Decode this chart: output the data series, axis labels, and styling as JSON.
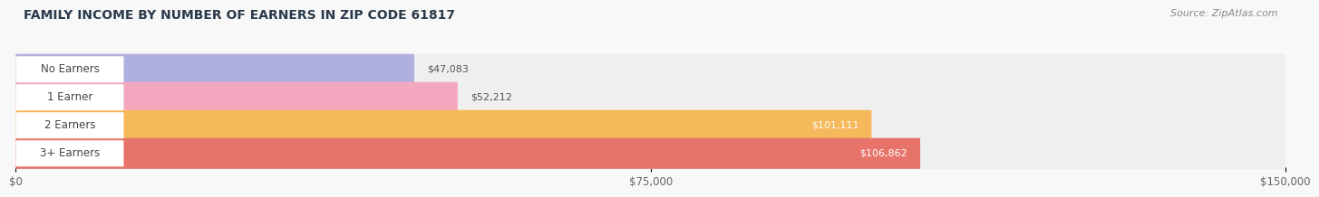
{
  "title": "FAMILY INCOME BY NUMBER OF EARNERS IN ZIP CODE 61817",
  "source": "Source: ZipAtlas.com",
  "categories": [
    "No Earners",
    "1 Earner",
    "2 Earners",
    "3+ Earners"
  ],
  "values": [
    47083,
    52212,
    101111,
    106862
  ],
  "bar_colors": [
    "#b0b0e0",
    "#f4a8c0",
    "#f5b85a",
    "#e8736a"
  ],
  "bar_bg_color": "#efefef",
  "value_labels": [
    "$47,083",
    "$52,212",
    "$101,111",
    "$106,862"
  ],
  "xlim": [
    0,
    150000
  ],
  "xticks": [
    0,
    75000,
    150000
  ],
  "xtick_labels": [
    "$0",
    "$75,000",
    "$150,000"
  ],
  "fig_bg_color": "#f8f8f8",
  "bar_area_bg": "#f0f0f0",
  "title_fontsize": 10,
  "source_fontsize": 8,
  "label_fontsize": 8.5,
  "value_fontsize": 8
}
